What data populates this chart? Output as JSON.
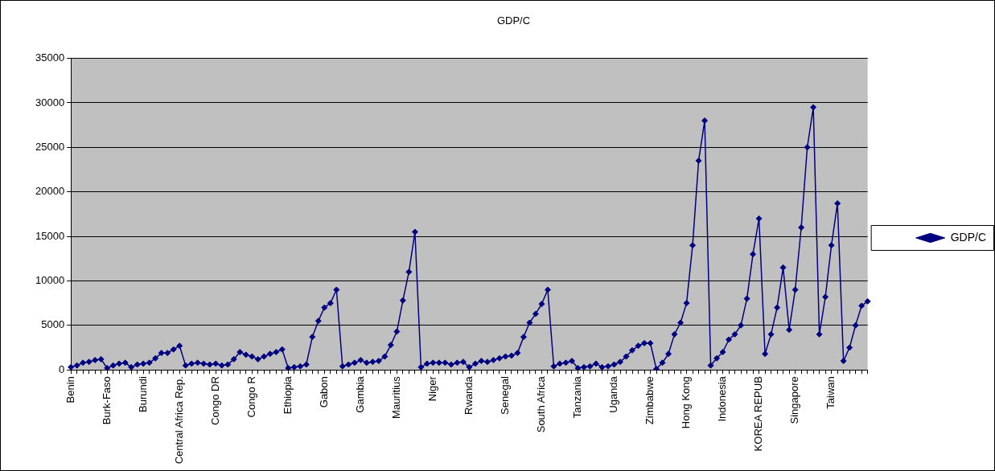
{
  "chart_data": {
    "type": "line",
    "title": "GDP/C",
    "categories": [
      "Benin",
      null,
      null,
      null,
      null,
      null,
      "Burk-Faso",
      null,
      null,
      null,
      null,
      null,
      "Burundi",
      null,
      null,
      null,
      null,
      null,
      "Central Africa Rep.",
      null,
      null,
      null,
      null,
      null,
      "Congo DR",
      null,
      null,
      null,
      null,
      null,
      "Congo R",
      null,
      null,
      null,
      null,
      null,
      "Ethiopia",
      null,
      null,
      null,
      null,
      null,
      "Gabon",
      null,
      null,
      null,
      null,
      null,
      "Gambia",
      null,
      null,
      null,
      null,
      null,
      "Mauritius",
      null,
      null,
      null,
      null,
      null,
      "Niger",
      null,
      null,
      null,
      null,
      null,
      "Rwanda",
      null,
      null,
      null,
      null,
      null,
      "Senegal",
      null,
      null,
      null,
      null,
      null,
      "South Africa",
      null,
      null,
      null,
      null,
      null,
      "Tanzania",
      null,
      null,
      null,
      null,
      null,
      "Uganda",
      null,
      null,
      null,
      null,
      null,
      "Zimbabwe",
      null,
      null,
      null,
      null,
      null,
      "Hong Kong",
      null,
      null,
      null,
      null,
      null,
      "Indonesia",
      null,
      null,
      null,
      null,
      null,
      "KOREA REPUB",
      null,
      null,
      null,
      null,
      null,
      "Singapore",
      null,
      null,
      null,
      null,
      null,
      "Taiwan",
      null,
      null,
      null,
      null,
      null,
      null
    ],
    "series": [
      {
        "name": "GDP/C",
        "color": "#000080",
        "values": [
          300,
          500,
          800,
          900,
          1100,
          1200,
          200,
          500,
          700,
          800,
          300,
          600,
          700,
          800,
          1300,
          1900,
          1900,
          2300,
          2700,
          500,
          700,
          800,
          700,
          600,
          700,
          500,
          600,
          1200,
          2000,
          1700,
          1500,
          1200,
          1500,
          1800,
          2000,
          2300,
          200,
          300,
          400,
          600,
          3700,
          5500,
          7000,
          7500,
          9000,
          400,
          600,
          800,
          1100,
          800,
          900,
          1000,
          1500,
          2800,
          4300,
          7800,
          11000,
          15500,
          300,
          700,
          800,
          800,
          800,
          600,
          800,
          900,
          300,
          700,
          1000,
          900,
          1100,
          1300,
          1500,
          1600,
          1900,
          3700,
          5300,
          6300,
          7400,
          9000,
          400,
          700,
          800,
          1000,
          200,
          300,
          400,
          700,
          300,
          400,
          600,
          900,
          1500,
          2200,
          2700,
          3000,
          3000,
          100,
          800,
          1800,
          4000,
          5300,
          7500,
          14000,
          23500,
          28000,
          500,
          1300,
          2000,
          3400,
          4000,
          5000,
          8000,
          13000,
          17000,
          1800,
          4000,
          7000,
          11500,
          4500,
          9000,
          16000,
          25000,
          29500,
          4000,
          8200,
          14000,
          18700,
          1000,
          2500,
          5000,
          7200,
          7700
        ]
      }
    ],
    "ylim": [
      0,
      35000
    ],
    "yticks": [
      0,
      5000,
      10000,
      15000,
      20000,
      25000,
      30000,
      35000
    ],
    "grid": "y",
    "legend": "right",
    "marker": "diamond",
    "line_style": "solid"
  }
}
